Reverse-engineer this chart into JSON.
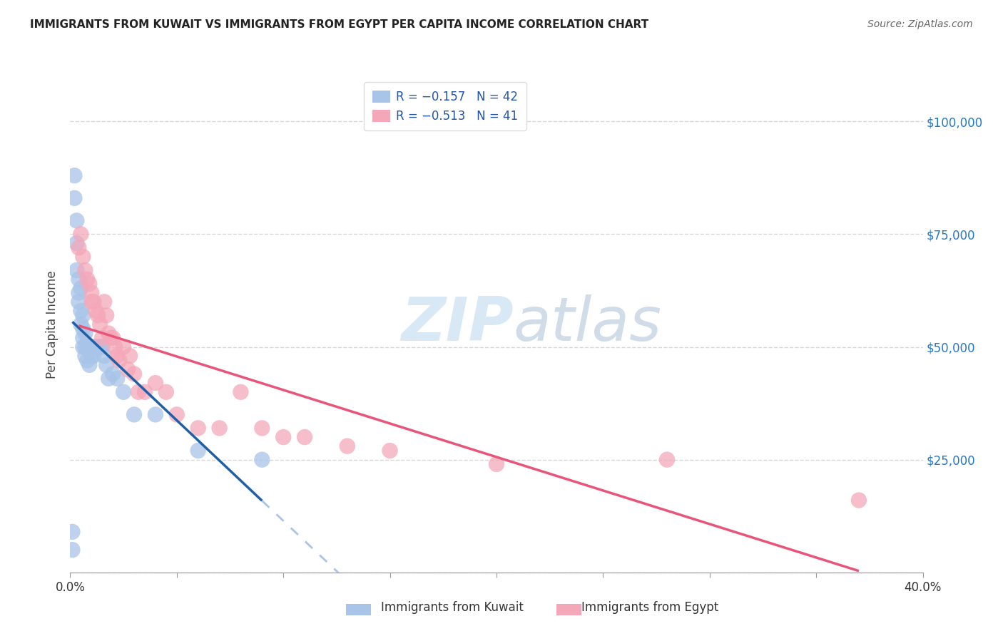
{
  "title": "IMMIGRANTS FROM KUWAIT VS IMMIGRANTS FROM EGYPT PER CAPITA INCOME CORRELATION CHART",
  "source": "Source: ZipAtlas.com",
  "ylabel": "Per Capita Income",
  "yticks": [
    0,
    25000,
    50000,
    75000,
    100000
  ],
  "ytick_labels": [
    "",
    "$25,000",
    "$50,000",
    "$75,000",
    "$100,000"
  ],
  "xlim": [
    0.0,
    0.4
  ],
  "ylim": [
    0,
    110000
  ],
  "legend1_r": "R = −0.157",
  "legend1_n": "N = 42",
  "legend2_r": "R = −0.513",
  "legend2_n": "N = 41",
  "kuwait_color": "#a8c4e8",
  "egypt_color": "#f4a7b9",
  "kuwait_line_color": "#1f5fa6",
  "egypt_line_color": "#e8547a",
  "dashed_line_color": "#a8c4e8",
  "watermark_zip": "ZIP",
  "watermark_atlas": "atlas",
  "kuwait_x": [
    0.001,
    0.001,
    0.002,
    0.002,
    0.003,
    0.003,
    0.003,
    0.004,
    0.004,
    0.004,
    0.005,
    0.005,
    0.005,
    0.006,
    0.006,
    0.006,
    0.006,
    0.007,
    0.007,
    0.007,
    0.008,
    0.008,
    0.009,
    0.009,
    0.01,
    0.01,
    0.011,
    0.011,
    0.012,
    0.013,
    0.014,
    0.015,
    0.016,
    0.017,
    0.018,
    0.02,
    0.022,
    0.025,
    0.03,
    0.04,
    0.06,
    0.09
  ],
  "kuwait_y": [
    9000,
    5000,
    88000,
    83000,
    78000,
    73000,
    67000,
    65000,
    62000,
    60000,
    63000,
    58000,
    55000,
    57000,
    54000,
    52000,
    50000,
    53000,
    50000,
    48000,
    50000,
    47000,
    50000,
    46000,
    50000,
    48000,
    50000,
    48000,
    50000,
    50000,
    50000,
    50000,
    48000,
    46000,
    43000,
    44000,
    43000,
    40000,
    35000,
    35000,
    27000,
    25000
  ],
  "egypt_x": [
    0.004,
    0.005,
    0.006,
    0.007,
    0.008,
    0.009,
    0.01,
    0.01,
    0.011,
    0.012,
    0.013,
    0.014,
    0.015,
    0.016,
    0.017,
    0.018,
    0.019,
    0.02,
    0.021,
    0.022,
    0.023,
    0.025,
    0.027,
    0.028,
    0.03,
    0.032,
    0.035,
    0.04,
    0.045,
    0.05,
    0.06,
    0.07,
    0.08,
    0.09,
    0.1,
    0.11,
    0.13,
    0.15,
    0.2,
    0.28,
    0.37
  ],
  "egypt_y": [
    72000,
    75000,
    70000,
    67000,
    65000,
    64000,
    62000,
    60000,
    60000,
    58000,
    57000,
    55000,
    52000,
    60000,
    57000,
    53000,
    52000,
    52000,
    50000,
    48000,
    47000,
    50000,
    45000,
    48000,
    44000,
    40000,
    40000,
    42000,
    40000,
    35000,
    32000,
    32000,
    40000,
    32000,
    30000,
    30000,
    28000,
    27000,
    24000,
    25000,
    16000
  ],
  "background_color": "#ffffff",
  "plot_bg_color": "#ffffff"
}
